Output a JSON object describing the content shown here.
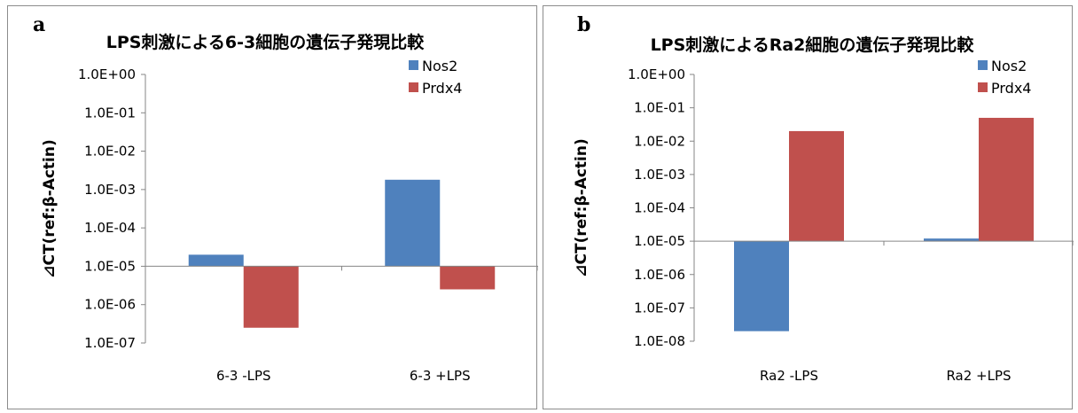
{
  "panels": [
    {
      "letter": "a",
      "chart_data": {
        "type": "bar",
        "title": "LPS刺激による6-3細胞の遺伝子発現比較",
        "ylabel": "⊿CT(ref:β-Actin)",
        "xlabel": "",
        "yscale": "log",
        "baseline": 1e-05,
        "ylim": [
          1e-07,
          1
        ],
        "yticks": [
          "1.0E+00",
          "1.0E-01",
          "1.0E-02",
          "1.0E-03",
          "1.0E-04",
          "1.0E-05",
          "1.0E-06",
          "1.0E-07"
        ],
        "categories": [
          "6-3 -LPS",
          "6-3 +LPS"
        ],
        "series": [
          {
            "name": "Nos2",
            "color": "#4f81bd",
            "values": [
              2e-05,
              0.0018
            ]
          },
          {
            "name": "Prdx4",
            "color": "#c0504d",
            "values": [
              2.5e-07,
              2.5e-06
            ]
          }
        ],
        "legend": "top-right",
        "grid": false
      }
    },
    {
      "letter": "b",
      "chart_data": {
        "type": "bar",
        "title": "LPS刺激によるRa2細胞の遺伝子発現比較",
        "ylabel": "⊿CT(ref:β-Actin)",
        "xlabel": "",
        "yscale": "log",
        "baseline": 1e-05,
        "ylim": [
          1e-08,
          1
        ],
        "yticks": [
          "1.0E+00",
          "1.0E-01",
          "1.0E-02",
          "1.0E-03",
          "1.0E-04",
          "1.0E-05",
          "1.0E-06",
          "1.0E-07",
          "1.0E-08"
        ],
        "categories": [
          "Ra2 -LPS",
          "Ra2 +LPS"
        ],
        "series": [
          {
            "name": "Nos2",
            "color": "#4f81bd",
            "values": [
              2e-08,
              1.2e-05
            ]
          },
          {
            "name": "Prdx4",
            "color": "#c0504d",
            "values": [
              0.02,
              0.05
            ]
          }
        ],
        "legend": "top-right",
        "grid": false
      }
    }
  ]
}
